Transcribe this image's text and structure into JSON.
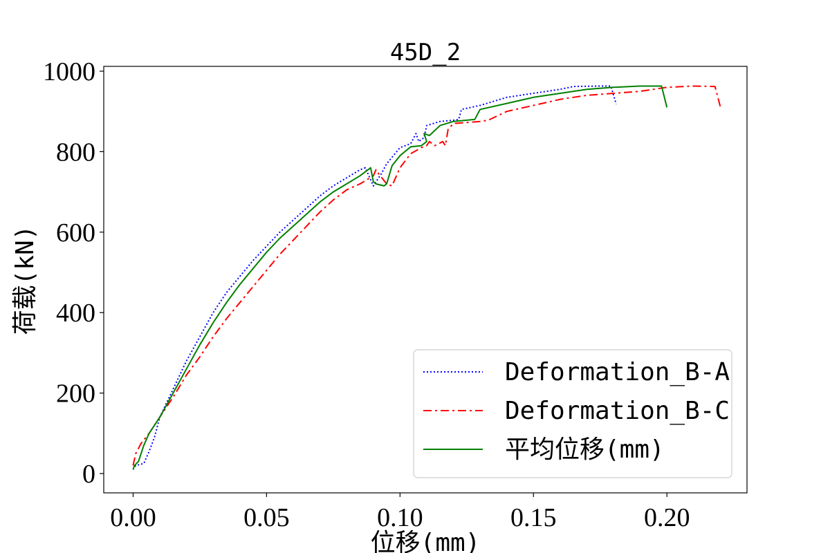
{
  "chart_data": {
    "type": "line",
    "title": "45D_2",
    "xlabel": "位移(mm)",
    "ylabel": "荷载(kN)",
    "xlim": [
      -0.011,
      0.23
    ],
    "ylim": [
      -48,
      1012
    ],
    "xticks": [
      0.0,
      0.05,
      0.1,
      0.15,
      0.2
    ],
    "xtick_labels": [
      "0.00",
      "0.05",
      "0.10",
      "0.15",
      "0.20"
    ],
    "yticks": [
      0,
      200,
      400,
      600,
      800,
      1000
    ],
    "ytick_labels": [
      "0",
      "200",
      "400",
      "600",
      "800",
      "1000"
    ],
    "grid": false,
    "legend_position": "lower-right",
    "series": [
      {
        "name": "Deformation_B-A",
        "color": "#0000ff",
        "style": "dotted",
        "x": [
          0.0,
          0.001,
          0.004,
          0.006,
          0.008,
          0.01,
          0.015,
          0.02,
          0.025,
          0.03,
          0.035,
          0.04,
          0.045,
          0.05,
          0.055,
          0.06,
          0.065,
          0.07,
          0.075,
          0.08,
          0.085,
          0.087,
          0.09,
          0.093,
          0.095,
          0.1,
          0.104,
          0.106,
          0.107,
          0.109,
          0.11,
          0.115,
          0.12,
          0.122,
          0.123,
          0.13,
          0.14,
          0.15,
          0.16,
          0.165,
          0.175,
          0.179,
          0.181
        ],
        "values": [
          10,
          20,
          25,
          55,
          90,
          140,
          210,
          280,
          340,
          400,
          450,
          490,
          530,
          565,
          600,
          630,
          660,
          690,
          715,
          735,
          755,
          760,
          715,
          745,
          770,
          810,
          820,
          845,
          825,
          835,
          865,
          875,
          878,
          880,
          905,
          915,
          935,
          945,
          955,
          962,
          963,
          963,
          918
        ]
      },
      {
        "name": "Deformation_B-C",
        "color": "#ff0000",
        "style": "dashdot",
        "x": [
          0.0,
          0.001,
          0.003,
          0.006,
          0.01,
          0.015,
          0.02,
          0.025,
          0.03,
          0.035,
          0.04,
          0.045,
          0.05,
          0.055,
          0.06,
          0.065,
          0.07,
          0.075,
          0.08,
          0.085,
          0.09,
          0.091,
          0.092,
          0.095,
          0.097,
          0.1,
          0.104,
          0.108,
          0.11,
          0.111,
          0.113,
          0.116,
          0.117,
          0.118,
          0.12,
          0.13,
          0.133,
          0.14,
          0.15,
          0.16,
          0.17,
          0.18,
          0.19,
          0.2,
          0.21,
          0.218,
          0.22
        ],
        "values": [
          20,
          50,
          75,
          100,
          140,
          190,
          245,
          290,
          340,
          385,
          425,
          465,
          505,
          545,
          580,
          615,
          650,
          680,
          705,
          720,
          740,
          755,
          745,
          720,
          715,
          760,
          795,
          810,
          815,
          825,
          815,
          825,
          815,
          855,
          870,
          875,
          878,
          900,
          915,
          930,
          940,
          945,
          950,
          960,
          963,
          962,
          912
        ]
      },
      {
        "name": "平均位移(mm)",
        "color": "#008000",
        "style": "solid",
        "x": [
          0.0,
          0.0005,
          0.002,
          0.004,
          0.006,
          0.01,
          0.015,
          0.02,
          0.025,
          0.03,
          0.035,
          0.04,
          0.045,
          0.05,
          0.055,
          0.06,
          0.065,
          0.07,
          0.075,
          0.08,
          0.085,
          0.089,
          0.09,
          0.091,
          0.094,
          0.095,
          0.097,
          0.1,
          0.104,
          0.108,
          0.11,
          0.109,
          0.111,
          0.115,
          0.12,
          0.128,
          0.13,
          0.14,
          0.15,
          0.16,
          0.17,
          0.18,
          0.19,
          0.198,
          0.2
        ],
        "values": [
          10,
          20,
          30,
          70,
          100,
          140,
          200,
          260,
          320,
          375,
          425,
          470,
          510,
          550,
          585,
          615,
          645,
          675,
          700,
          720,
          740,
          760,
          725,
          720,
          715,
          720,
          765,
          790,
          812,
          815,
          825,
          845,
          840,
          865,
          875,
          880,
          905,
          920,
          935,
          945,
          955,
          960,
          963,
          963,
          910
        ]
      }
    ]
  }
}
